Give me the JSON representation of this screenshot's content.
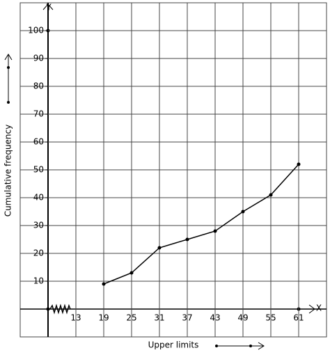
{
  "chart_data": {
    "type": "line",
    "x_label": "Upper limits",
    "y_label": "Cumulative frequency",
    "x_axis_name": "X",
    "y_axis_name": "Y",
    "x": [
      19,
      25,
      31,
      37,
      43,
      49,
      55,
      61
    ],
    "series": [
      {
        "color": "#000000",
        "values": [
          9,
          13,
          22,
          25,
          28,
          35,
          41,
          52
        ]
      }
    ],
    "xlim": [
      1,
      67
    ],
    "xticks": [
      13,
      19,
      25,
      31,
      37,
      43,
      49,
      55,
      61
    ],
    "ylim": [
      -10,
      110
    ],
    "yticks": [
      10,
      20,
      30,
      40,
      50,
      60,
      70,
      80,
      90,
      100
    ],
    "grid": true
  }
}
